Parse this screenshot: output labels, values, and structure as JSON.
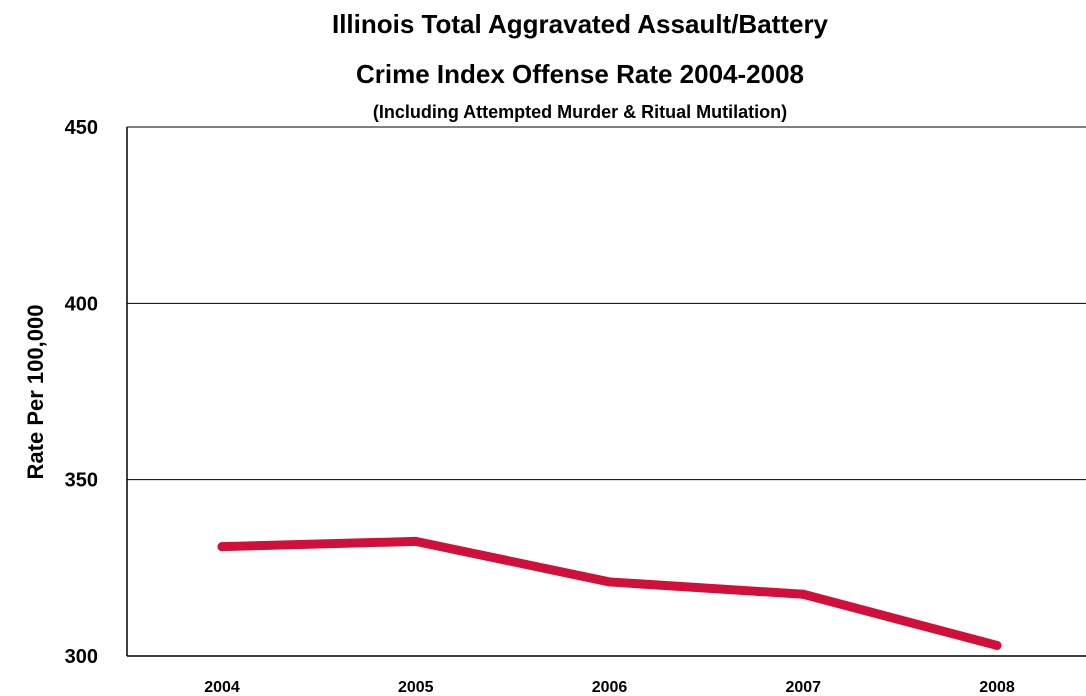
{
  "chart_data": {
    "type": "line",
    "title": "Illinois Total Aggravated Assault/Battery",
    "subtitle": "Crime Index Offense Rate 2004-2008",
    "note": "(Including Attempted Murder & Ritual Mutilation)",
    "xlabel": "",
    "ylabel": "Rate Per 100,000",
    "categories": [
      "2004",
      "2005",
      "2006",
      "2007",
      "2008"
    ],
    "series": [
      {
        "values": [
          331,
          332.5,
          321,
          317.5,
          303
        ]
      }
    ],
    "ylim": [
      300,
      450
    ],
    "yticks": [
      300,
      350,
      400,
      450
    ],
    "grid": true,
    "line_color": "#d0103a"
  }
}
